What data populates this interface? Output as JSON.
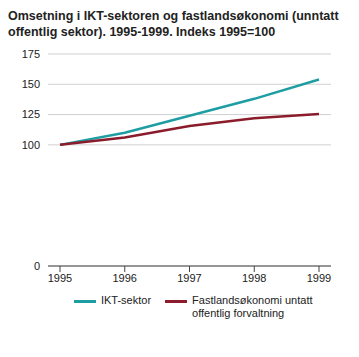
{
  "chart_data": {
    "type": "line",
    "title": "Omsetning i IKT-sektoren og fastlandsøkonomi (unntatt offentlig sektor). 1995-1999. Indeks 1995=100",
    "categories": [
      "1995",
      "1996",
      "1997",
      "1998",
      "1999"
    ],
    "series": [
      {
        "name": "IKT-sektor",
        "color": "#1e9ea3",
        "values": [
          100,
          110,
          124,
          138,
          154
        ]
      },
      {
        "name": "Fastlandsøkonomi untatt offentlig forvaltning",
        "color": "#8a1c2c",
        "values": [
          100,
          106,
          115.5,
          122,
          125.5
        ]
      }
    ],
    "ylim": [
      0,
      175
    ],
    "yticks": [
      0,
      100,
      125,
      150,
      175
    ],
    "grid": true,
    "legend": "bottom"
  }
}
